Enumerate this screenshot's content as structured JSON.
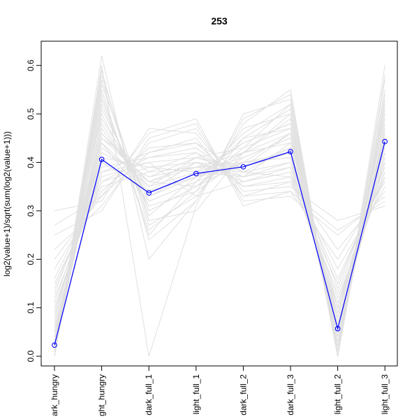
{
  "chart_data": {
    "type": "line",
    "title": "253",
    "xlabel": "",
    "ylabel": "log2(value+1)/sqrt(sum(log2(value+1)))",
    "categories": [
      "dark_hungry",
      "light_hungry",
      "dark_full_1",
      "light_full_1",
      "dark_full_2",
      "dark_full_3",
      "light_full_2",
      "light_full_3"
    ],
    "tick_labels": [
      "ark_hungry",
      "ght_hungry",
      "dark_full_1",
      "light_full_1",
      "dark_full_2",
      "dark_full_3",
      "light_full_2",
      "light_full_3"
    ],
    "ylim": [
      -0.02,
      0.65
    ],
    "yticks": [
      0.0,
      0.1,
      0.2,
      0.3,
      0.4,
      0.5,
      0.6
    ],
    "ytick_labels": [
      "0.0",
      "0.1",
      "0.2",
      "0.3",
      "0.4",
      "0.5",
      "0.6"
    ],
    "highlight": {
      "color": "#0000ff",
      "values": [
        0.023,
        0.406,
        0.337,
        0.377,
        0.391,
        0.422,
        0.057,
        0.443
      ]
    },
    "background": {
      "color": "#e0e0e0",
      "series": [
        [
          0.02,
          0.4,
          0.34,
          0.37,
          0.39,
          0.42,
          0.06,
          0.44
        ],
        [
          0.0,
          0.52,
          0.3,
          0.35,
          0.4,
          0.46,
          0.02,
          0.48
        ],
        [
          0.05,
          0.45,
          0.36,
          0.4,
          0.37,
          0.4,
          0.08,
          0.42
        ],
        [
          0.1,
          0.38,
          0.4,
          0.33,
          0.36,
          0.38,
          0.1,
          0.4
        ],
        [
          0.0,
          0.58,
          0.28,
          0.3,
          0.42,
          0.5,
          0.0,
          0.52
        ],
        [
          0.15,
          0.35,
          0.38,
          0.42,
          0.35,
          0.36,
          0.15,
          0.38
        ],
        [
          0.03,
          0.48,
          0.33,
          0.38,
          0.44,
          0.48,
          0.04,
          0.46
        ],
        [
          0.2,
          0.33,
          0.42,
          0.45,
          0.33,
          0.34,
          0.2,
          0.36
        ],
        [
          0.01,
          0.55,
          0.25,
          0.36,
          0.46,
          0.52,
          0.01,
          0.55
        ],
        [
          0.08,
          0.42,
          0.37,
          0.39,
          0.38,
          0.43,
          0.06,
          0.41
        ],
        [
          0.0,
          0.62,
          0.2,
          0.32,
          0.48,
          0.55,
          0.0,
          0.6
        ],
        [
          0.12,
          0.36,
          0.41,
          0.43,
          0.36,
          0.39,
          0.12,
          0.37
        ],
        [
          0.04,
          0.5,
          0.31,
          0.34,
          0.41,
          0.45,
          0.03,
          0.47
        ],
        [
          0.25,
          0.3,
          0.45,
          0.48,
          0.32,
          0.33,
          0.25,
          0.33
        ],
        [
          0.02,
          0.46,
          0.35,
          0.41,
          0.43,
          0.47,
          0.05,
          0.45
        ],
        [
          0.06,
          0.44,
          0.32,
          0.36,
          0.4,
          0.41,
          0.09,
          0.43
        ],
        [
          0.0,
          0.57,
          0.27,
          0.33,
          0.45,
          0.51,
          0.0,
          0.53
        ],
        [
          0.3,
          0.32,
          0.47,
          0.46,
          0.34,
          0.35,
          0.28,
          0.31
        ],
        [
          0.09,
          0.41,
          0.39,
          0.38,
          0.37,
          0.44,
          0.07,
          0.42
        ],
        [
          0.01,
          0.53,
          0.29,
          0.37,
          0.42,
          0.49,
          0.02,
          0.5
        ],
        [
          0.18,
          0.34,
          0.43,
          0.44,
          0.35,
          0.37,
          0.18,
          0.35
        ],
        [
          0.03,
          0.47,
          0.34,
          0.4,
          0.39,
          0.46,
          0.04,
          0.46
        ],
        [
          0.0,
          0.6,
          0.0,
          0.31,
          0.5,
          0.53,
          0.0,
          0.58
        ],
        [
          0.14,
          0.37,
          0.4,
          0.41,
          0.38,
          0.4,
          0.14,
          0.39
        ],
        [
          0.05,
          0.43,
          0.36,
          0.35,
          0.42,
          0.44,
          0.08,
          0.44
        ],
        [
          0.0,
          0.54,
          0.26,
          0.34,
          0.47,
          0.5,
          0.01,
          0.51
        ],
        [
          0.22,
          0.31,
          0.44,
          0.47,
          0.33,
          0.36,
          0.22,
          0.34
        ],
        [
          0.07,
          0.45,
          0.38,
          0.39,
          0.4,
          0.42,
          0.1,
          0.43
        ],
        [
          0.02,
          0.49,
          0.33,
          0.37,
          0.44,
          0.48,
          0.03,
          0.49
        ],
        [
          0.11,
          0.39,
          0.41,
          0.42,
          0.37,
          0.39,
          0.11,
          0.4
        ],
        [
          0.0,
          0.56,
          0.3,
          0.35,
          0.43,
          0.52,
          0.0,
          0.54
        ],
        [
          0.16,
          0.36,
          0.39,
          0.4,
          0.36,
          0.38,
          0.16,
          0.37
        ],
        [
          0.04,
          0.44,
          0.35,
          0.38,
          0.41,
          0.45,
          0.06,
          0.45
        ],
        [
          0.01,
          0.51,
          0.32,
          0.36,
          0.45,
          0.47,
          0.02,
          0.47
        ],
        [
          0.27,
          0.33,
          0.46,
          0.49,
          0.31,
          0.34,
          0.26,
          0.32
        ],
        [
          0.06,
          0.42,
          0.37,
          0.41,
          0.39,
          0.43,
          0.07,
          0.41
        ],
        [
          0.0,
          0.59,
          0.24,
          0.32,
          0.49,
          0.54,
          0.0,
          0.57
        ],
        [
          0.13,
          0.38,
          0.42,
          0.44,
          0.38,
          0.37,
          0.13,
          0.38
        ],
        [
          0.03,
          0.46,
          0.36,
          0.39,
          0.42,
          0.46,
          0.05,
          0.44
        ],
        [
          0.09,
          0.4,
          0.34,
          0.37,
          0.4,
          0.41,
          0.09,
          0.42
        ]
      ]
    },
    "grid": false,
    "legend": "none"
  }
}
